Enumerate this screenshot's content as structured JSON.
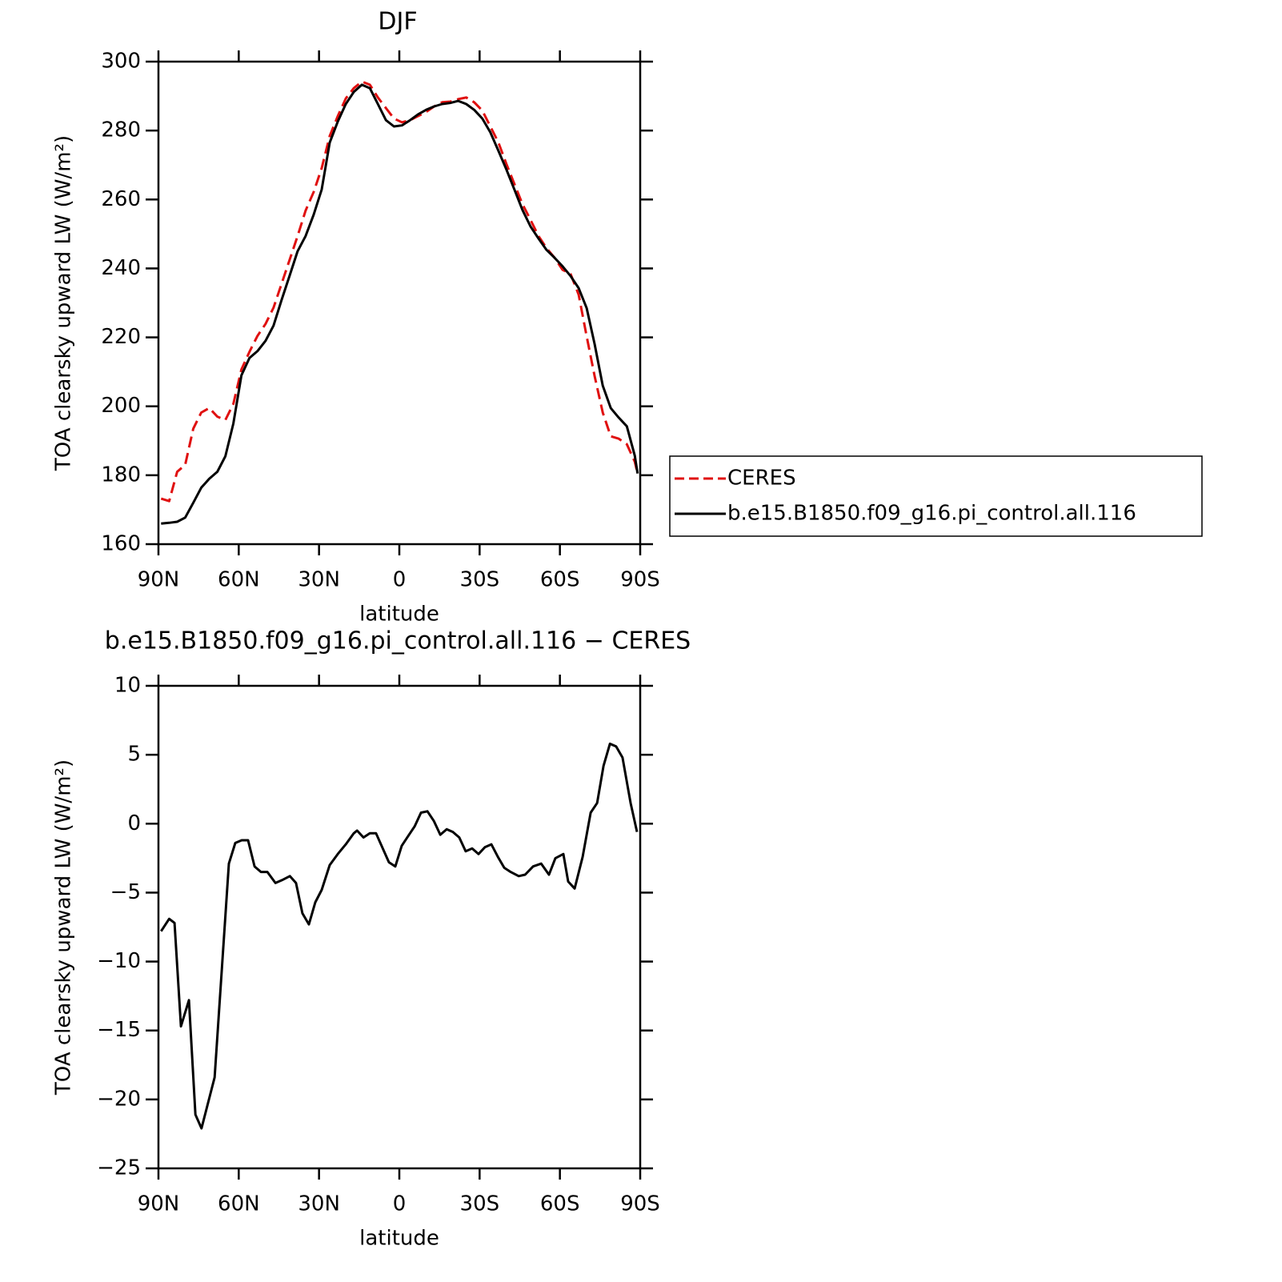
{
  "chart_data": [
    {
      "type": "line",
      "title": "DJF",
      "xlabel": "latitude",
      "ylabel": "TOA clearsky upward LW (W/m²)",
      "x": [
        89,
        86,
        83,
        80,
        77,
        74,
        71,
        68,
        65,
        62,
        59,
        56,
        53,
        50,
        47,
        44,
        41,
        38,
        35,
        32,
        29,
        26,
        23,
        20,
        17,
        14,
        11,
        8,
        5,
        2,
        -1,
        -4,
        -7,
        -10,
        -13,
        -16,
        -19,
        -22,
        -25,
        -28,
        -31,
        -34,
        -37,
        -40,
        -43,
        -46,
        -49,
        -52,
        -55,
        -58,
        -61,
        -64,
        -67,
        -70,
        -73,
        -76,
        -79,
        -82,
        -85,
        -88,
        -89
      ],
      "series": [
        {
          "name": "CERES",
          "color": "#e01010",
          "line_style": "dashed",
          "values": [
            173.2,
            172.5,
            181,
            183,
            193.5,
            198.2,
            199.5,
            197,
            196,
            200.7,
            210.7,
            215.8,
            220.4,
            223.9,
            228.6,
            235.5,
            242.5,
            249.4,
            256.8,
            262.2,
            269.1,
            278.4,
            284.2,
            289.3,
            292.3,
            294.2,
            293.3,
            289.6,
            286.5,
            283.5,
            282.4,
            283,
            284.2,
            285.4,
            287,
            288.2,
            288.4,
            289.1,
            289.6,
            288.2,
            285.8,
            281.2,
            276.6,
            270.3,
            264.5,
            258.7,
            254.1,
            249.4,
            245.9,
            243.1,
            239.6,
            238.4,
            232.4,
            220.3,
            208.7,
            198.2,
            191.3,
            190.6,
            189,
            183.9,
            180.5
          ]
        },
        {
          "name": "b.e15.B1850.f09_g16.pi_control.all.116",
          "color": "#000000",
          "line_style": "solid",
          "values": [
            166,
            166.2,
            166.5,
            167.7,
            172,
            176.4,
            179,
            181,
            185.5,
            195,
            209,
            214,
            216,
            219,
            223.4,
            230.8,
            237.9,
            245,
            249.4,
            255.6,
            262.9,
            276.5,
            282.6,
            287.7,
            291.2,
            293.3,
            292.3,
            287.7,
            283,
            281.2,
            281.5,
            283,
            284.7,
            286,
            287,
            287.7,
            288,
            288.6,
            287.7,
            286,
            283.5,
            279.5,
            274.2,
            268.7,
            262.9,
            257,
            252.2,
            248.7,
            245.4,
            243.1,
            240.6,
            237.8,
            234.3,
            228.5,
            218,
            206,
            199.5,
            196.7,
            194.2,
            185.6,
            180.5
          ]
        }
      ],
      "xlim": [
        90,
        -90
      ],
      "xticks": [
        {
          "value": 90,
          "label": "90N"
        },
        {
          "value": 60,
          "label": "60N"
        },
        {
          "value": 30,
          "label": "30N"
        },
        0,
        {
          "value": -30,
          "label": "30S"
        },
        {
          "value": -60,
          "label": "60S"
        },
        {
          "value": -90,
          "label": "90S"
        }
      ],
      "ylim": [
        160,
        300
      ],
      "yticks": [
        160,
        180,
        200,
        220,
        240,
        260,
        280,
        300
      ],
      "legend": "right"
    },
    {
      "type": "line",
      "title": "b.e15.B1850.f09_g16.pi_control.all.116 − CERES",
      "xlabel": "latitude",
      "ylabel": "TOA clearsky upward LW (W/m²)",
      "x": [
        89,
        86,
        84,
        81.6,
        78.6,
        76.2,
        73.9,
        69,
        63.7,
        61.3,
        58.9,
        56.5,
        54.1,
        51.7,
        49.3,
        46.3,
        43.9,
        40.9,
        38.6,
        36.2,
        33.8,
        31.4,
        29,
        26,
        23,
        20,
        17,
        15.8,
        13.4,
        11,
        8.7,
        3.9,
        1.5,
        -0.9,
        -3.3,
        -5.7,
        -8.1,
        -10.5,
        -12.9,
        -15.3,
        -17.7,
        -20,
        -22.4,
        -24.8,
        -27.2,
        -29.6,
        -32,
        -34.4,
        -36.8,
        -39.2,
        -41.6,
        -44.6,
        -47,
        -50,
        -53,
        -55.9,
        -58.3,
        -61.3,
        -63.1,
        -65.5,
        -68.5,
        -71.5,
        -73.9,
        -76.3,
        -78.7,
        -81,
        -83.4,
        -86.4,
        -88.8
      ],
      "series": [
        {
          "color": "#000000",
          "line_style": "solid",
          "values": [
            -7.8,
            -6.9,
            -7.2,
            -14.7,
            -12.8,
            -21.1,
            -22.1,
            -18.4,
            -2.9,
            -1.4,
            -1.2,
            -1.2,
            -3.1,
            -3.5,
            -3.5,
            -4.3,
            -4.1,
            -3.8,
            -4.3,
            -6.5,
            -7.3,
            -5.7,
            -4.8,
            -3,
            -2.2,
            -1.5,
            -0.7,
            -0.5,
            -1,
            -0.7,
            -0.7,
            -2.8,
            -3.1,
            -1.6,
            -0.9,
            -0.2,
            0.8,
            0.9,
            0.2,
            -0.8,
            -0.4,
            -0.6,
            -1,
            -2,
            -1.8,
            -2.2,
            -1.7,
            -1.5,
            -2.4,
            -3.2,
            -3.5,
            -3.8,
            -3.7,
            -3.1,
            -2.9,
            -3.7,
            -2.5,
            -2.2,
            -4.2,
            -4.7,
            -2.4,
            0.8,
            1.5,
            4.2,
            5.8,
            5.6,
            4.8,
            1.5,
            -0.6
          ]
        }
      ],
      "xlim": [
        90,
        -90
      ],
      "xticks": [
        {
          "value": 90,
          "label": "90N"
        },
        {
          "value": 60,
          "label": "60N"
        },
        {
          "value": 30,
          "label": "30N"
        },
        0,
        {
          "value": -30,
          "label": "30S"
        },
        {
          "value": -60,
          "label": "60S"
        },
        {
          "value": -90,
          "label": "90S"
        }
      ],
      "ylim": [
        -25,
        10
      ],
      "yticks": [
        {
          "value": -25,
          "label": "−25"
        },
        {
          "value": -20,
          "label": "−20"
        },
        {
          "value": -15,
          "label": "−15"
        },
        {
          "value": -10,
          "label": "−10"
        },
        {
          "value": -5,
          "label": "−5"
        },
        0,
        5,
        10
      ]
    }
  ]
}
